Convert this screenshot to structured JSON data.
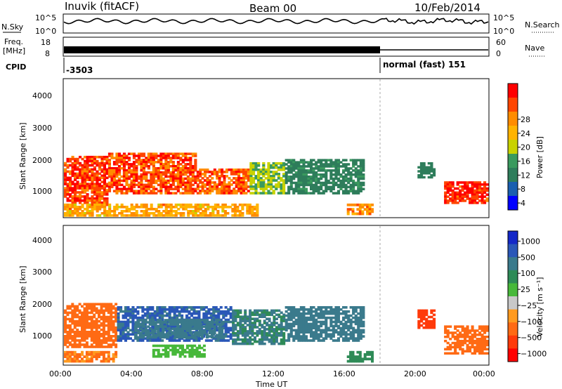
{
  "header": {
    "station": "Inuvik (fitACF)",
    "beam": "Beam 00",
    "date": "10/Feb/2014"
  },
  "nsky_panel": {
    "left_label": "N.Sky",
    "ticks_left": [
      "10^5",
      "10^0"
    ],
    "ticks_right": [
      "10^5",
      "10^0"
    ],
    "right_label": "N.Search"
  },
  "freq_panel": {
    "left_label_1": "Freq.",
    "left_label_2": "[MHz]",
    "ticks_left": [
      "18",
      "8"
    ],
    "ticks_right": [
      "60",
      "0"
    ],
    "right_label": "Nave"
  },
  "cpid": {
    "label": "CPID",
    "value_1": "-3503",
    "value_2": "normal (fast) 151"
  },
  "power_panel": {
    "ylabel": "Slant Range [km]",
    "yticks": [
      "4000",
      "3000",
      "2000",
      "1000"
    ],
    "colorbar_label": "Power [dB]",
    "colorbar_ticks": [
      "28",
      "24",
      "20",
      "16",
      "12",
      "8",
      "4"
    ],
    "colorbar_colors": [
      "#ff0000",
      "#ff4500",
      "#ff8c00",
      "#ffb300",
      "#c8d200",
      "#3a9a5e",
      "#2e7d5b",
      "#1a5fb0",
      "#0000ff"
    ]
  },
  "velocity_panel": {
    "ylabel": "Slant Range [km]",
    "yticks": [
      "4000",
      "3000",
      "2000",
      "1000"
    ],
    "colorbar_label": "Velocity [m s⁻¹]",
    "colorbar_ticks": [
      "1000",
      "500",
      "100",
      "25",
      "−25",
      "−100",
      "−500",
      "−1000"
    ],
    "colorbar_colors": [
      "#1428c8",
      "#2a57b8",
      "#3a7a8c",
      "#2e8b57",
      "#47b83a",
      "#c8c8c8",
      "#ff9a1f",
      "#ff6a14",
      "#ff3a0a",
      "#ff0000"
    ]
  },
  "xaxis": {
    "ticks": [
      "00:00",
      "04:00",
      "08:00",
      "12:00",
      "16:00",
      "20:00",
      "00:00"
    ],
    "label": "Time UT"
  },
  "chart_data": {
    "type": "heatmap",
    "title": "Inuvik (fitACF)  Beam 00  10/Feb/2014",
    "x_range_hours": [
      0,
      24
    ],
    "y_range_km": [
      180,
      4500
    ],
    "cpid_change_hours": 18.0,
    "power_regions": [
      {
        "t0": 0.0,
        "t1": 2.5,
        "r0": 600,
        "r1": 2100,
        "power_db": 26
      },
      {
        "t0": 2.5,
        "t1": 7.5,
        "r0": 900,
        "r1": 2200,
        "power_db": 25
      },
      {
        "t0": 7.5,
        "t1": 10.5,
        "r0": 900,
        "r1": 1700,
        "power_db": 24
      },
      {
        "t0": 10.5,
        "t1": 12.5,
        "r0": 900,
        "r1": 1900,
        "power_db": 14
      },
      {
        "t0": 12.5,
        "t1": 17.0,
        "r0": 900,
        "r1": 2000,
        "power_db": 9
      },
      {
        "t0": 0.0,
        "t1": 11.0,
        "r0": 200,
        "r1": 600,
        "power_db": 20
      },
      {
        "t0": 16.0,
        "t1": 17.5,
        "r0": 250,
        "r1": 600,
        "power_db": 22
      },
      {
        "t0": 20.0,
        "t1": 21.0,
        "r0": 1400,
        "r1": 1900,
        "power_db": 8
      },
      {
        "t0": 21.5,
        "t1": 24.0,
        "r0": 600,
        "r1": 1300,
        "power_db": 28
      }
    ],
    "velocity_regions": [
      {
        "t0": 0.0,
        "t1": 3.0,
        "r0": 700,
        "r1": 2100,
        "velocity_ms": -150
      },
      {
        "t0": 3.0,
        "t1": 9.5,
        "r0": 900,
        "r1": 2000,
        "velocity_ms": 200
      },
      {
        "t0": 4.0,
        "t1": 9.0,
        "r0": 1000,
        "r1": 1600,
        "velocity_ms": 150
      },
      {
        "t0": 9.5,
        "t1": 12.5,
        "r0": 800,
        "r1": 1900,
        "velocity_ms": 100
      },
      {
        "t0": 12.5,
        "t1": 17.0,
        "r0": 900,
        "r1": 2000,
        "velocity_ms": 150
      },
      {
        "t0": 0.0,
        "t1": 3.0,
        "r0": 250,
        "r1": 600,
        "velocity_ms": -100
      },
      {
        "t0": 5.0,
        "t1": 8.0,
        "r0": 400,
        "r1": 800,
        "velocity_ms": 10
      },
      {
        "t0": 16.0,
        "t1": 17.5,
        "r0": 250,
        "r1": 600,
        "velocity_ms": 60
      },
      {
        "t0": 20.0,
        "t1": 21.0,
        "r0": 1300,
        "r1": 1900,
        "velocity_ms": -500
      },
      {
        "t0": 21.5,
        "t1": 24.0,
        "r0": 500,
        "r1": 1400,
        "velocity_ms": -150
      }
    ]
  }
}
